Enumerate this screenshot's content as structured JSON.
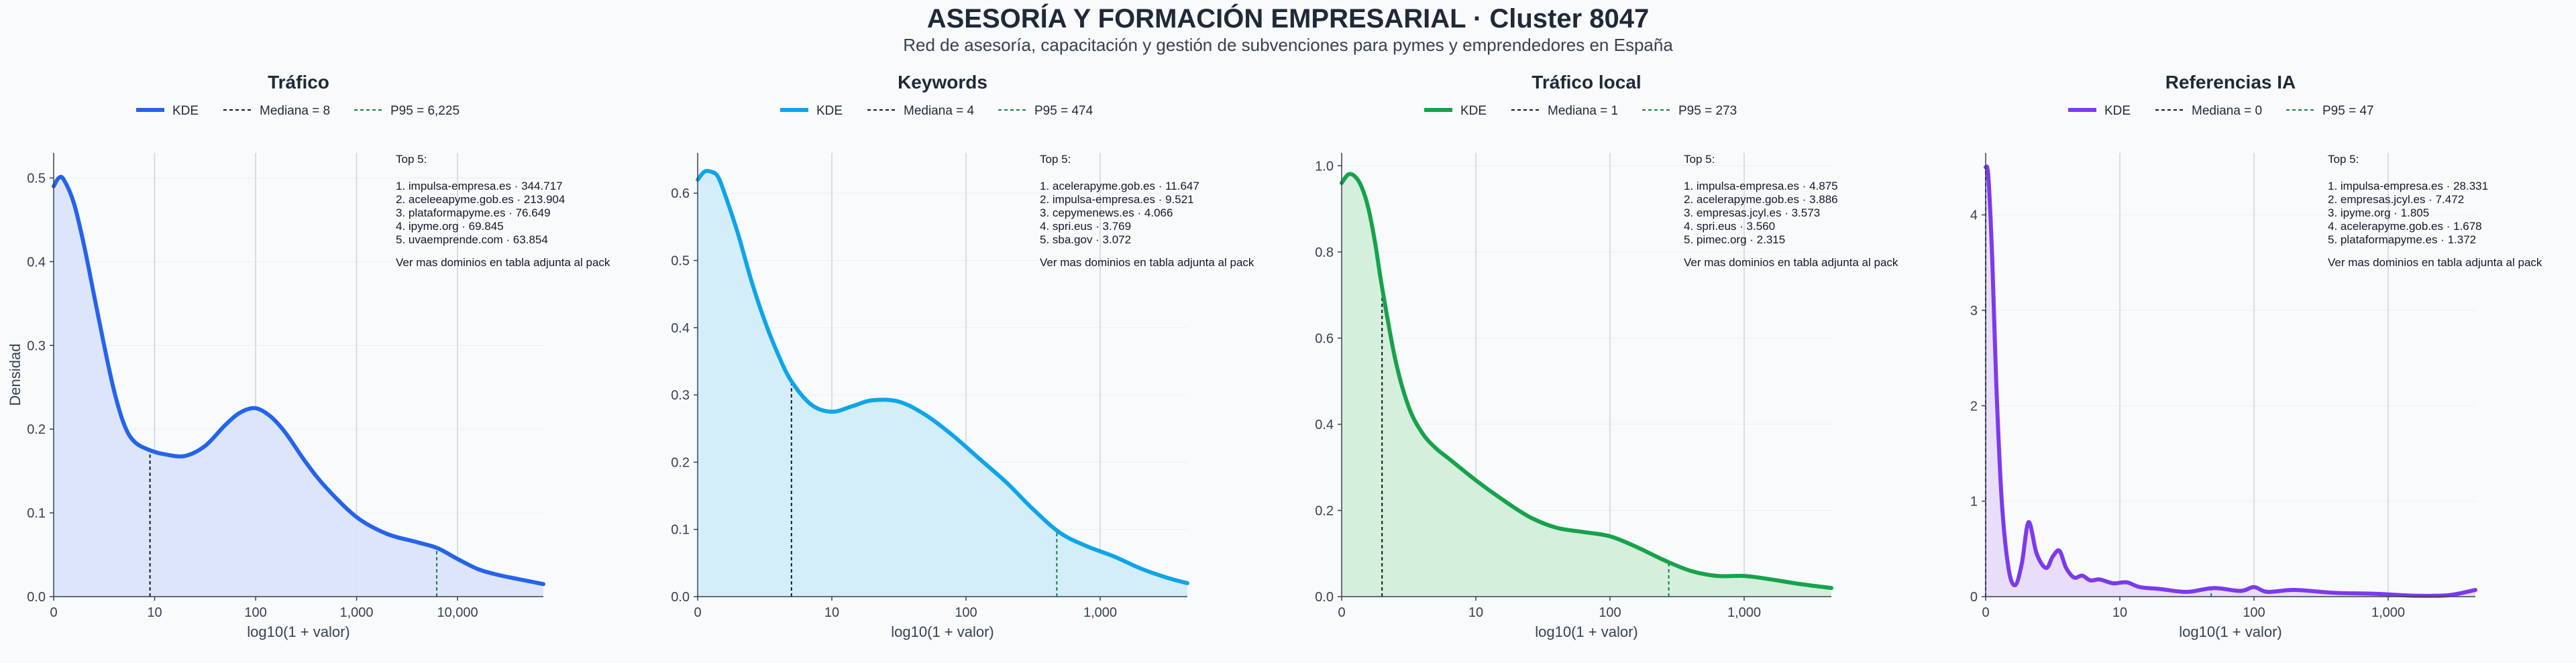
{
  "title": "ASESORÍA Y FORMACIÓN EMPRESARIAL · Cluster 8047",
  "subtitle": "Red de asesoría, capacitación y gestión de subvenciones para pymes y emprendedores en España",
  "chart_data": [
    {
      "type": "area",
      "title": "Tráfico",
      "color": "#2563eb",
      "fill": "#dbe4fb",
      "xlabel": "log10(1 + valor)",
      "ylabel": "Densidad",
      "xlim": [
        0,
        4.85
      ],
      "ylim": [
        0,
        0.53
      ],
      "xticks": [
        0,
        1,
        2,
        3,
        4
      ],
      "xtick_labels": [
        "0",
        "10",
        "100",
        "1,000",
        "10,000"
      ],
      "yticks": [
        0.0,
        0.1,
        0.2,
        0.3,
        0.4,
        0.5
      ],
      "ytick_labels": [
        "0.0",
        "0.1",
        "0.2",
        "0.3",
        "0.4",
        "0.5"
      ],
      "x": [
        0,
        0.05,
        0.1,
        0.2,
        0.3,
        0.4,
        0.5,
        0.6,
        0.7,
        0.8,
        0.95,
        1.1,
        1.3,
        1.5,
        1.7,
        1.85,
        2.0,
        2.15,
        2.3,
        2.5,
        2.7,
        3.0,
        3.3,
        3.6,
        3.8,
        4.0,
        4.2,
        4.4,
        4.6,
        4.85
      ],
      "y": [
        0.49,
        0.5,
        0.498,
        0.47,
        0.42,
        0.36,
        0.3,
        0.245,
        0.205,
        0.185,
        0.175,
        0.17,
        0.168,
        0.18,
        0.205,
        0.22,
        0.225,
        0.215,
        0.195,
        0.16,
        0.13,
        0.095,
        0.075,
        0.065,
        0.058,
        0.045,
        0.033,
        0.026,
        0.021,
        0.015
      ],
      "series": [
        {
          "name": "KDE"
        },
        {
          "name": "Mediana = 8",
          "value": 0.954
        },
        {
          "name": "P95 = 6,225",
          "value": 3.794
        }
      ],
      "top5_header": "Top 5:",
      "top5": [
        "1. impulsa-empresa.es · 344.717",
        "2. aceleeapyme.gob.es · 213.904",
        "3. plataformapyme.es · 76.649",
        "4. ipyme.org · 69.845",
        "5. uvaemprende.com · 63.854"
      ],
      "more": "Ver mas dominios en tabla adjunta al pack"
    },
    {
      "type": "area",
      "title": "Keywords",
      "color": "#0ea5e9",
      "fill": "#d2edf9",
      "xlabel": "log10(1 + valor)",
      "ylabel": "",
      "xlim": [
        0,
        3.65
      ],
      "ylim": [
        0,
        0.66
      ],
      "xticks": [
        0,
        1,
        2,
        3
      ],
      "xtick_labels": [
        "0",
        "10",
        "100",
        "1,000"
      ],
      "yticks": [
        0.0,
        0.1,
        0.2,
        0.3,
        0.4,
        0.5,
        0.6
      ],
      "ytick_labels": [
        "0.0",
        "0.1",
        "0.2",
        "0.3",
        "0.4",
        "0.5",
        "0.6"
      ],
      "x": [
        0,
        0.05,
        0.1,
        0.15,
        0.2,
        0.3,
        0.4,
        0.5,
        0.6,
        0.7,
        0.85,
        1.0,
        1.15,
        1.3,
        1.5,
        1.7,
        1.9,
        2.1,
        2.3,
        2.5,
        2.7,
        2.9,
        3.1,
        3.3,
        3.5,
        3.65
      ],
      "y": [
        0.62,
        0.632,
        0.632,
        0.625,
        0.6,
        0.54,
        0.47,
        0.41,
        0.36,
        0.32,
        0.285,
        0.275,
        0.283,
        0.292,
        0.29,
        0.27,
        0.24,
        0.205,
        0.17,
        0.13,
        0.095,
        0.075,
        0.06,
        0.042,
        0.028,
        0.02
      ],
      "series": [
        {
          "name": "KDE"
        },
        {
          "name": "Mediana = 4",
          "value": 0.699
        },
        {
          "name": "P95 = 474",
          "value": 2.677
        }
      ],
      "top5_header": "Top 5:",
      "top5": [
        "1. acelerapyme.gob.es · 11.647",
        "2. impulsa-empresa.es · 9.521",
        "3. cepymenews.es · 4.066",
        "4. spri.eus · 3.769",
        "5. sba.gov · 3.072"
      ],
      "more": "Ver mas dominios en tabla adjunta al pack"
    },
    {
      "type": "area",
      "title": "Tráfico local",
      "color": "#16a34a",
      "fill": "#d3eedb",
      "xlabel": "log10(1 + valor)",
      "ylabel": "",
      "xlim": [
        0,
        3.65
      ],
      "ylim": [
        0,
        1.03
      ],
      "xticks": [
        0,
        1,
        2,
        3
      ],
      "xtick_labels": [
        "0",
        "10",
        "100",
        "1,000"
      ],
      "yticks": [
        0.0,
        0.2,
        0.4,
        0.6,
        0.8,
        1.0
      ],
      "ytick_labels": [
        "0.0",
        "0.2",
        "0.4",
        "0.6",
        "0.8",
        "1.0"
      ],
      "x": [
        0,
        0.05,
        0.1,
        0.15,
        0.2,
        0.25,
        0.3,
        0.4,
        0.5,
        0.6,
        0.7,
        0.8,
        1.0,
        1.2,
        1.4,
        1.6,
        1.8,
        2.0,
        2.2,
        2.4,
        2.6,
        2.8,
        3.0,
        3.2,
        3.4,
        3.65
      ],
      "y": [
        0.96,
        0.98,
        0.975,
        0.95,
        0.9,
        0.82,
        0.72,
        0.55,
        0.44,
        0.38,
        0.345,
        0.32,
        0.27,
        0.225,
        0.185,
        0.16,
        0.15,
        0.14,
        0.115,
        0.085,
        0.06,
        0.048,
        0.048,
        0.04,
        0.03,
        0.02
      ],
      "series": [
        {
          "name": "KDE"
        },
        {
          "name": "Mediana = 1",
          "value": 0.301
        },
        {
          "name": "P95 = 273",
          "value": 2.438
        }
      ],
      "top5_header": "Top 5:",
      "top5": [
        "1. impulsa-empresa.es · 4.875",
        "2. acelerapyme.gob.es · 3.886",
        "3. empresas.jcyl.es · 3.573",
        "4. spri.eus · 3.560",
        "5. pimec.org · 2.315"
      ],
      "more": "Ver mas dominios en tabla adjunta al pack"
    },
    {
      "type": "area",
      "title": "Referencias IA",
      "color": "#7c3aed",
      "fill": "#e8dcf9",
      "xlabel": "log10(1 + valor)",
      "ylabel": "",
      "xlim": [
        0,
        3.65
      ],
      "ylim": [
        0,
        4.65
      ],
      "xticks": [
        0,
        1,
        2,
        3
      ],
      "xtick_labels": [
        "0",
        "10",
        "100",
        "1,000"
      ],
      "yticks": [
        0,
        1,
        2,
        3,
        4
      ],
      "ytick_labels": [
        "0",
        "1",
        "2",
        "3",
        "4"
      ],
      "x": [
        0,
        0.02,
        0.05,
        0.08,
        0.12,
        0.17,
        0.22,
        0.27,
        0.32,
        0.38,
        0.45,
        0.5,
        0.55,
        0.6,
        0.66,
        0.72,
        0.78,
        0.85,
        0.95,
        1.05,
        1.15,
        1.3,
        1.5,
        1.7,
        1.9,
        2.0,
        2.1,
        2.3,
        2.6,
        2.9,
        3.2,
        3.45,
        3.65
      ],
      "y": [
        4.5,
        4.4,
        3.5,
        2.2,
        1.0,
        0.3,
        0.12,
        0.35,
        0.78,
        0.45,
        0.3,
        0.42,
        0.48,
        0.3,
        0.2,
        0.22,
        0.17,
        0.18,
        0.14,
        0.15,
        0.1,
        0.08,
        0.05,
        0.09,
        0.06,
        0.1,
        0.05,
        0.07,
        0.04,
        0.03,
        0.01,
        0.015,
        0.07
      ],
      "series": [
        {
          "name": "KDE"
        },
        {
          "name": "Mediana = 0",
          "value": 0.0
        },
        {
          "name": "P95 = 47",
          "value": 1.681
        }
      ],
      "top5_header": "Top 5:",
      "top5": [
        "1. impulsa-empresa.es · 28.331",
        "2. empresas.jcyl.es · 7.472",
        "3. ipyme.org · 1.805",
        "4. acelerapyme.gob.es · 1.678",
        "5. plataformapyme.es · 1.372"
      ],
      "more": "Ver mas dominios en tabla adjunta al pack"
    }
  ]
}
